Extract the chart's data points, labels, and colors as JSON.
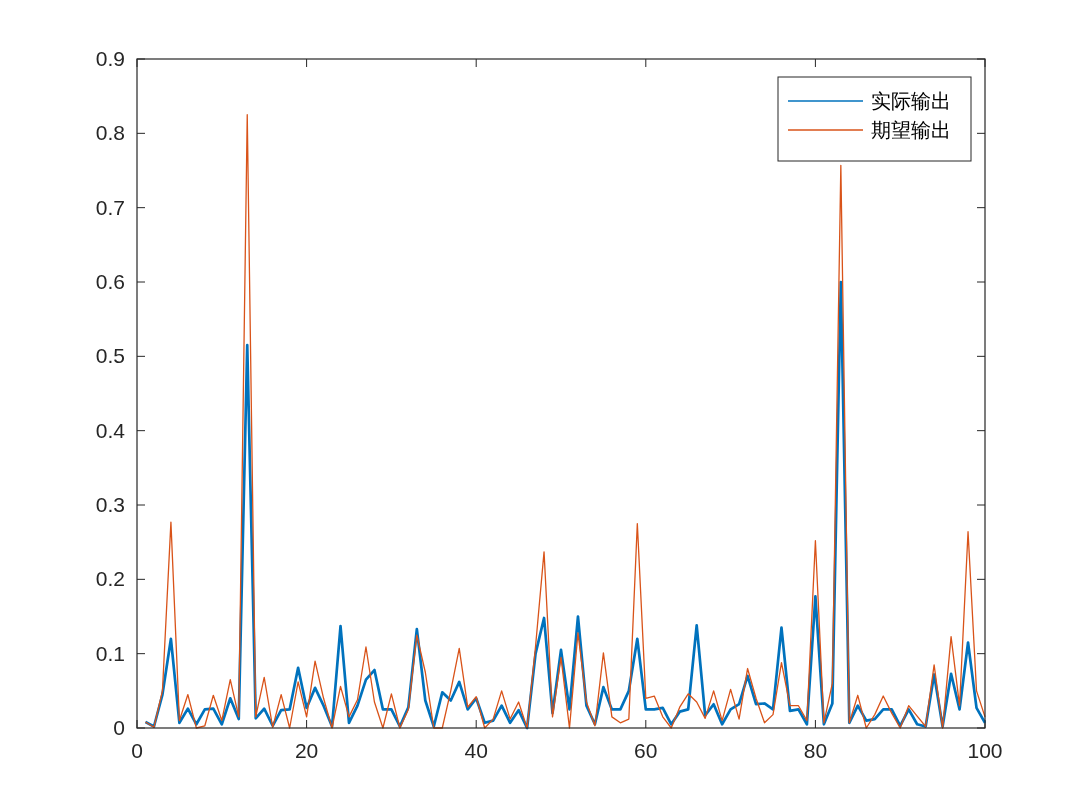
{
  "chart_data": {
    "type": "line",
    "x": [
      1,
      2,
      3,
      4,
      5,
      6,
      7,
      8,
      9,
      10,
      11,
      12,
      13,
      14,
      15,
      16,
      17,
      18,
      19,
      20,
      21,
      22,
      23,
      24,
      25,
      26,
      27,
      28,
      29,
      30,
      31,
      32,
      33,
      34,
      35,
      36,
      37,
      38,
      39,
      40,
      41,
      42,
      43,
      44,
      45,
      46,
      47,
      48,
      49,
      50,
      51,
      52,
      53,
      54,
      55,
      56,
      57,
      58,
      59,
      60,
      61,
      62,
      63,
      64,
      65,
      66,
      67,
      68,
      69,
      70,
      71,
      72,
      73,
      74,
      75,
      76,
      77,
      78,
      79,
      80,
      81,
      82,
      83,
      84,
      85,
      86,
      87,
      88,
      89,
      90,
      91,
      92,
      93,
      94,
      95,
      96,
      97,
      98,
      99,
      100
    ],
    "series": [
      {
        "name": "实际输出",
        "color": "#0072bd",
        "values": [
          0.008,
          0.002,
          0.045,
          0.12,
          0.007,
          0.026,
          0.005,
          0.025,
          0.026,
          0.005,
          0.04,
          0.012,
          0.515,
          0.013,
          0.026,
          0.003,
          0.024,
          0.025,
          0.081,
          0.027,
          0.054,
          0.03,
          0.002,
          0.137,
          0.007,
          0.03,
          0.065,
          0.078,
          0.025,
          0.025,
          0.002,
          0.028,
          0.133,
          0.037,
          0.002,
          0.048,
          0.037,
          0.062,
          0.025,
          0.04,
          0.007,
          0.01,
          0.03,
          0.007,
          0.024,
          0.0,
          0.1,
          0.148,
          0.02,
          0.105,
          0.025,
          0.15,
          0.03,
          0.005,
          0.055,
          0.025,
          0.025,
          0.05,
          0.12,
          0.025,
          0.025,
          0.027,
          0.005,
          0.022,
          0.025,
          0.138,
          0.017,
          0.032,
          0.005,
          0.025,
          0.032,
          0.07,
          0.032,
          0.033,
          0.025,
          0.135,
          0.023,
          0.025,
          0.005,
          0.177,
          0.005,
          0.033,
          0.6,
          0.007,
          0.03,
          0.01,
          0.012,
          0.025,
          0.025,
          0.003,
          0.025,
          0.005,
          0.002,
          0.072,
          0.002,
          0.073,
          0.025,
          0.115,
          0.027,
          0.007
        ]
      },
      {
        "name": "期望输出",
        "color": "#d95319",
        "values": [
          0.008,
          0.001,
          0.05,
          0.277,
          0.01,
          0.045,
          0.0,
          0.003,
          0.044,
          0.01,
          0.065,
          0.015,
          0.825,
          0.015,
          0.068,
          0.001,
          0.045,
          0.0,
          0.062,
          0.015,
          0.09,
          0.04,
          0.0,
          0.056,
          0.015,
          0.038,
          0.109,
          0.035,
          0.0,
          0.046,
          0.0,
          0.025,
          0.125,
          0.075,
          0.0,
          0.0,
          0.05,
          0.107,
          0.028,
          0.042,
          0.0,
          0.012,
          0.05,
          0.012,
          0.035,
          0.0,
          0.11,
          0.237,
          0.015,
          0.095,
          0.0,
          0.128,
          0.035,
          0.003,
          0.101,
          0.015,
          0.007,
          0.012,
          0.275,
          0.04,
          0.043,
          0.015,
          0.0,
          0.028,
          0.046,
          0.035,
          0.013,
          0.05,
          0.01,
          0.052,
          0.012,
          0.08,
          0.04,
          0.007,
          0.018,
          0.088,
          0.03,
          0.03,
          0.01,
          0.252,
          0.007,
          0.06,
          0.757,
          0.007,
          0.044,
          0.0,
          0.018,
          0.043,
          0.02,
          0.0,
          0.03,
          0.016,
          0.002,
          0.085,
          0.0,
          0.123,
          0.03,
          0.264,
          0.05,
          0.015
        ]
      }
    ],
    "xlim": [
      0,
      100
    ],
    "ylim": [
      0,
      0.9
    ],
    "xticks": [
      0,
      20,
      40,
      60,
      80,
      100
    ],
    "yticks": [
      0,
      0.1,
      0.2,
      0.3,
      0.4,
      0.5,
      0.6,
      0.7,
      0.8,
      0.9
    ],
    "legend": "top right"
  }
}
